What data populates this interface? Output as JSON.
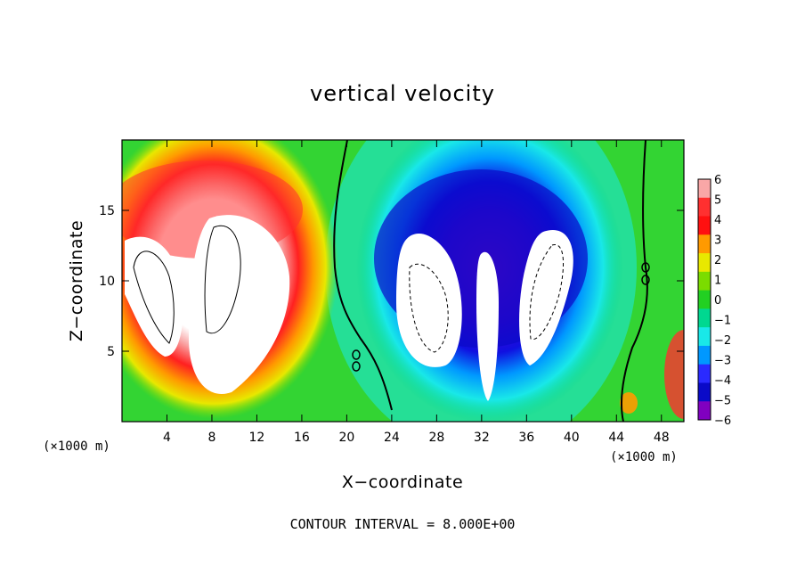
{
  "chart_data": {
    "type": "heatmap",
    "title": "vertical velocity",
    "xlabel": "X−coordinate",
    "ylabel": "Z−coordinate",
    "x_unit_left": "(×1000 m)",
    "x_unit_right": "(×1000 m)",
    "xlim": [
      0,
      50
    ],
    "ylim": [
      0,
      20
    ],
    "x_ticks": [
      4,
      8,
      12,
      16,
      20,
      24,
      28,
      32,
      36,
      40,
      44,
      48
    ],
    "x_tick_labels": [
      "4",
      "8",
      "12",
      "16",
      "20",
      "24",
      "28",
      "32",
      "36",
      "40",
      "44",
      "48"
    ],
    "y_ticks": [
      5,
      10,
      15
    ],
    "y_tick_labels": [
      "5",
      "10",
      "15"
    ],
    "colorbar": {
      "levels": [
        6,
        5,
        4,
        3,
        2,
        1,
        0,
        -1,
        -2,
        -3,
        -4,
        -5,
        -6
      ],
      "labels": [
        "6",
        "5",
        "4",
        "3",
        "2",
        "1",
        "0",
        "−1",
        "−2",
        "−3",
        "−4",
        "−5",
        "−6"
      ],
      "colors": [
        "#f9a7a7",
        "#ff3030",
        "#ff1010",
        "#ff9a00",
        "#e8e800",
        "#7bdc00",
        "#22d022",
        "#00d890",
        "#19e8e8",
        "#0098ff",
        "#2a2aff",
        "#0a0ac8",
        "#8000c0"
      ]
    },
    "contour_interval": "CONTOUR INTERVAL = 8.000E+00",
    "features": [
      {
        "kind": "updraft",
        "center_x": 8,
        "center_z": 11,
        "peak": 6
      },
      {
        "kind": "downdraft",
        "center_x": 32,
        "center_z": 13,
        "peak": -6
      }
    ]
  }
}
